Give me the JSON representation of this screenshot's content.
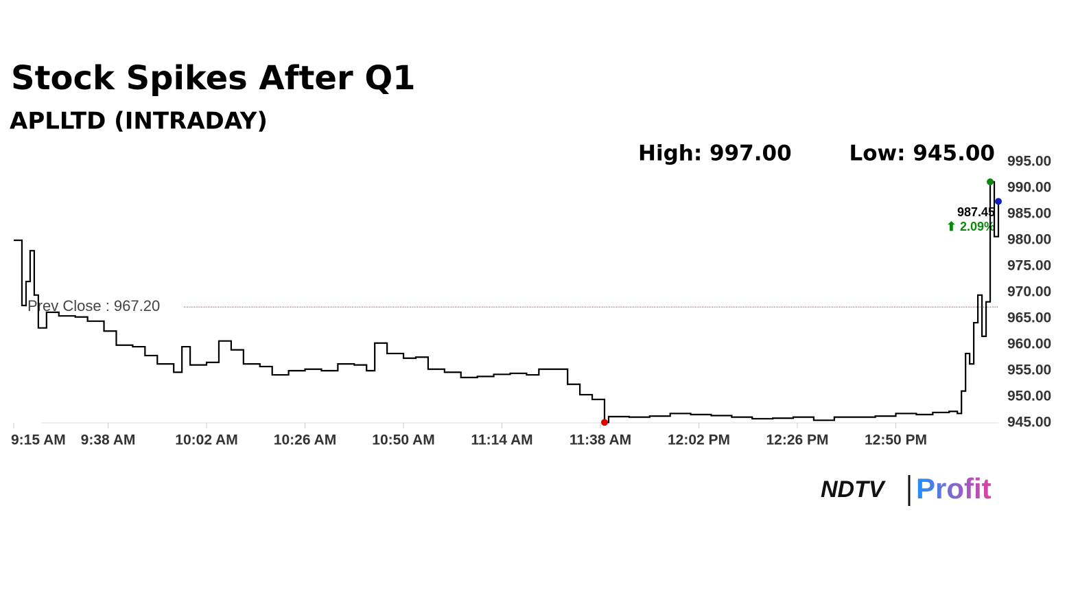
{
  "chart_data": {
    "type": "line",
    "title": "Stock Spikes After Q1",
    "subtitle": "APLLTD (INTRADAY)",
    "high_label": "High: 997.00",
    "low_label": "Low: 945.00",
    "prev_close_label": "Prev Close : 967.20",
    "prev_close": 967.2,
    "last_label": "987.45",
    "change_label": "⬆ 2.09%",
    "brand": [
      "NDTV",
      "Profit"
    ],
    "x": [
      555,
      557,
      558,
      559,
      560,
      561,
      563,
      566,
      570,
      573,
      577,
      580,
      584,
      587,
      590,
      594,
      596,
      598,
      602,
      605,
      608,
      611,
      615,
      618,
      622,
      626,
      630,
      634,
      638,
      641,
      643,
      646,
      650,
      653,
      656,
      660,
      664,
      668,
      672,
      676,
      680,
      683,
      687,
      690,
      693,
      696,
      699,
      700,
      705,
      710,
      715,
      720,
      725,
      730,
      735,
      740,
      745,
      750,
      755,
      760,
      765,
      770,
      775,
      779,
      783,
      785,
      786,
      787,
      788,
      789,
      790,
      791,
      792,
      793,
      794,
      795
    ],
    "series": [
      {
        "name": "APLLTD",
        "color": "#000000",
        "values": [
          980.0,
          967.5,
          972.1,
          978.0,
          969.5,
          963.2,
          966.2,
          965.5,
          965.3,
          964.5,
          962.6,
          959.9,
          959.6,
          957.9,
          956.3,
          954.7,
          959.6,
          956.1,
          956.6,
          960.7,
          959.0,
          956.3,
          955.8,
          954.2,
          955.0,
          955.3,
          955.0,
          956.3,
          956.1,
          955.0,
          960.3,
          958.3,
          957.4,
          957.6,
          955.3,
          954.7,
          953.7,
          953.9,
          954.3,
          954.5,
          954.2,
          955.3,
          955.3,
          952.4,
          950.4,
          949.5,
          945.1,
          946.2,
          946.1,
          946.3,
          946.8,
          946.6,
          946.4,
          946.1,
          945.8,
          945.9,
          946.1,
          945.5,
          946.1,
          946.1,
          946.3,
          946.8,
          946.6,
          947.0,
          947.2,
          946.8,
          951.1,
          958.3,
          956.3,
          964.2,
          969.5,
          961.6,
          968.2,
          991.2,
          980.7,
          987.45
        ]
      }
    ],
    "xlim": [
      555,
      795
    ],
    "xticks": [
      {
        "value": 555,
        "label": "9:15 AM"
      },
      {
        "value": 578,
        "label": "9:38 AM"
      },
      {
        "value": 602,
        "label": "10:02 AM"
      },
      {
        "value": 626,
        "label": "10:26 AM"
      },
      {
        "value": 650,
        "label": "10:50 AM"
      },
      {
        "value": 674,
        "label": "11:14 AM"
      },
      {
        "value": 698,
        "label": "11:38 AM"
      },
      {
        "value": 722,
        "label": "12:02 PM"
      },
      {
        "value": 746,
        "label": "12:26 PM"
      },
      {
        "value": 770,
        "label": "12:50 PM"
      }
    ],
    "ylim": [
      945,
      995
    ],
    "yticks": [
      {
        "value": 945,
        "label": "945.00"
      },
      {
        "value": 950,
        "label": "950.00"
      },
      {
        "value": 955,
        "label": "955.00"
      },
      {
        "value": 960,
        "label": "960.00"
      },
      {
        "value": 965,
        "label": "965.00"
      },
      {
        "value": 970,
        "label": "970.00"
      },
      {
        "value": 975,
        "label": "975.00"
      },
      {
        "value": 980,
        "label": "980.00"
      },
      {
        "value": 985,
        "label": "985.00"
      },
      {
        "value": 990,
        "label": "990.00"
      },
      {
        "value": 995,
        "label": "995.00"
      }
    ]
  }
}
